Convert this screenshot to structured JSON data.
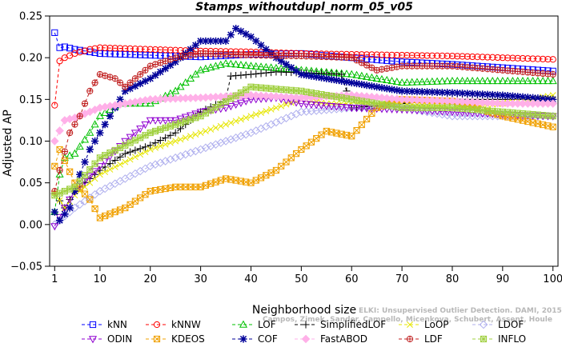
{
  "chart_data": {
    "type": "line",
    "title": "Stamps_withoutdupl_norm_05_v05",
    "xlabel": "Neighborhood size",
    "ylabel": "Adjusted AP",
    "xlim": [
      0,
      101
    ],
    "ylim": [
      -0.05,
      0.25
    ],
    "xticks": [
      1,
      10,
      20,
      30,
      40,
      50,
      60,
      70,
      80,
      90,
      100
    ],
    "yticks": [
      -0.05,
      0.0,
      0.05,
      0.1,
      0.15,
      0.2,
      0.25
    ],
    "ytick_labels": [
      "−0.05",
      "0.00",
      "0.05",
      "0.10",
      "0.15",
      "0.20",
      "0.25"
    ],
    "grid": false,
    "legend_position": "bottom",
    "watermark": [
      "ELKI: Unsupervised Outlier Detection. DAMI, 2015.",
      "Campos, Zimek, Sander, Campello, Micenkova, Schubert, Assent, Houle"
    ],
    "series": [
      {
        "name": "kNN",
        "color": "#0000ff",
        "marker": "square",
        "points": [
          [
            1,
            0.23
          ],
          [
            2,
            0.212
          ],
          [
            3,
            0.213
          ],
          [
            5,
            0.21
          ],
          [
            10,
            0.205
          ],
          [
            20,
            0.203
          ],
          [
            30,
            0.201
          ],
          [
            40,
            0.204
          ],
          [
            50,
            0.205
          ],
          [
            60,
            0.2
          ],
          [
            70,
            0.195
          ],
          [
            80,
            0.192
          ],
          [
            90,
            0.188
          ],
          [
            100,
            0.184
          ]
        ]
      },
      {
        "name": "kNNW",
        "color": "#ff0000",
        "marker": "circle",
        "points": [
          [
            1,
            0.143
          ],
          [
            2,
            0.196
          ],
          [
            3,
            0.2
          ],
          [
            5,
            0.205
          ],
          [
            8,
            0.21
          ],
          [
            10,
            0.212
          ],
          [
            20,
            0.21
          ],
          [
            30,
            0.208
          ],
          [
            40,
            0.207
          ],
          [
            50,
            0.205
          ],
          [
            60,
            0.204
          ],
          [
            70,
            0.203
          ],
          [
            80,
            0.202
          ],
          [
            90,
            0.2
          ],
          [
            100,
            0.198
          ]
        ]
      },
      {
        "name": "LOF",
        "color": "#00c000",
        "marker": "triangle-up",
        "points": [
          [
            1,
            0.015
          ],
          [
            2,
            0.06
          ],
          [
            3,
            0.08
          ],
          [
            5,
            0.085
          ],
          [
            8,
            0.11
          ],
          [
            10,
            0.13
          ],
          [
            14,
            0.145
          ],
          [
            20,
            0.145
          ],
          [
            25,
            0.16
          ],
          [
            30,
            0.185
          ],
          [
            35,
            0.193
          ],
          [
            40,
            0.19
          ],
          [
            50,
            0.185
          ],
          [
            60,
            0.18
          ],
          [
            70,
            0.17
          ],
          [
            80,
            0.172
          ],
          [
            90,
            0.172
          ],
          [
            100,
            0.172
          ]
        ]
      },
      {
        "name": "SimplifiedLOF",
        "color": "#000000",
        "marker": "plus",
        "points": [
          [
            1,
            0.037
          ],
          [
            3,
            0.02
          ],
          [
            5,
            0.04
          ],
          [
            10,
            0.065
          ],
          [
            15,
            0.085
          ],
          [
            20,
            0.095
          ],
          [
            25,
            0.11
          ],
          [
            30,
            0.135
          ],
          [
            35,
            0.15
          ],
          [
            36,
            0.178
          ],
          [
            40,
            0.18
          ],
          [
            45,
            0.183
          ],
          [
            50,
            0.182
          ],
          [
            55,
            0.181
          ],
          [
            58,
            0.18
          ],
          [
            60,
            0.14
          ],
          [
            70,
            0.145
          ],
          [
            80,
            0.15
          ],
          [
            90,
            0.15
          ],
          [
            100,
            0.15
          ]
        ]
      },
      {
        "name": "LoOP",
        "color": "#e6e600",
        "marker": "x",
        "points": [
          [
            1,
            0.038
          ],
          [
            3,
            0.02
          ],
          [
            5,
            0.035
          ],
          [
            10,
            0.06
          ],
          [
            20,
            0.09
          ],
          [
            30,
            0.11
          ],
          [
            40,
            0.13
          ],
          [
            50,
            0.15
          ],
          [
            55,
            0.145
          ],
          [
            60,
            0.145
          ],
          [
            70,
            0.145
          ],
          [
            80,
            0.14
          ],
          [
            90,
            0.145
          ],
          [
            100,
            0.155
          ]
        ]
      },
      {
        "name": "LDOF",
        "color": "#b0b0ee",
        "marker": "diamond",
        "points": [
          [
            1,
            0.0
          ],
          [
            3,
            0.01
          ],
          [
            5,
            0.02
          ],
          [
            10,
            0.04
          ],
          [
            15,
            0.055
          ],
          [
            20,
            0.07
          ],
          [
            25,
            0.08
          ],
          [
            30,
            0.09
          ],
          [
            40,
            0.11
          ],
          [
            50,
            0.135
          ],
          [
            60,
            0.14
          ],
          [
            70,
            0.14
          ],
          [
            80,
            0.13
          ],
          [
            90,
            0.13
          ],
          [
            100,
            0.13
          ]
        ]
      },
      {
        "name": "ODIN",
        "color": "#9000d0",
        "marker": "triangle-down",
        "points": [
          [
            1,
            -0.002
          ],
          [
            3,
            0.02
          ],
          [
            5,
            0.04
          ],
          [
            10,
            0.07
          ],
          [
            15,
            0.1
          ],
          [
            20,
            0.125
          ],
          [
            25,
            0.125
          ],
          [
            30,
            0.135
          ],
          [
            35,
            0.14
          ],
          [
            40,
            0.15
          ],
          [
            45,
            0.152
          ],
          [
            50,
            0.145
          ],
          [
            60,
            0.14
          ],
          [
            70,
            0.138
          ],
          [
            80,
            0.135
          ],
          [
            90,
            0.132
          ],
          [
            100,
            0.13
          ]
        ]
      },
      {
        "name": "KDEOS",
        "color": "#f0a000",
        "marker": "square-x",
        "points": [
          [
            1,
            0.07
          ],
          [
            2,
            0.09
          ],
          [
            5,
            0.05
          ],
          [
            8,
            0.03
          ],
          [
            10,
            0.008
          ],
          [
            15,
            0.02
          ],
          [
            20,
            0.04
          ],
          [
            25,
            0.045
          ],
          [
            30,
            0.045
          ],
          [
            35,
            0.055
          ],
          [
            40,
            0.05
          ],
          [
            45,
            0.065
          ],
          [
            50,
            0.09
          ],
          [
            55,
            0.112
          ],
          [
            60,
            0.106
          ],
          [
            65,
            0.14
          ],
          [
            70,
            0.15
          ],
          [
            80,
            0.148
          ],
          [
            90,
            0.13
          ],
          [
            100,
            0.117
          ]
        ]
      },
      {
        "name": "COF",
        "color": "#000099",
        "marker": "star",
        "points": [
          [
            1,
            0.015
          ],
          [
            2,
            0.005
          ],
          [
            4,
            0.02
          ],
          [
            6,
            0.06
          ],
          [
            8,
            0.09
          ],
          [
            10,
            0.11
          ],
          [
            15,
            0.16
          ],
          [
            20,
            0.175
          ],
          [
            25,
            0.195
          ],
          [
            30,
            0.22
          ],
          [
            35,
            0.22
          ],
          [
            37,
            0.235
          ],
          [
            40,
            0.225
          ],
          [
            45,
            0.2
          ],
          [
            50,
            0.18
          ],
          [
            60,
            0.17
          ],
          [
            70,
            0.16
          ],
          [
            80,
            0.158
          ],
          [
            90,
            0.155
          ],
          [
            100,
            0.15
          ]
        ]
      },
      {
        "name": "FastABOD",
        "color": "#ffb0e8",
        "marker": "diamond-filled",
        "points": [
          [
            1,
            0.1
          ],
          [
            3,
            0.125
          ],
          [
            5,
            0.128
          ],
          [
            10,
            0.14
          ],
          [
            15,
            0.145
          ],
          [
            20,
            0.15
          ],
          [
            30,
            0.152
          ],
          [
            40,
            0.155
          ],
          [
            50,
            0.152
          ],
          [
            60,
            0.155
          ],
          [
            70,
            0.15
          ],
          [
            80,
            0.148
          ],
          [
            90,
            0.145
          ],
          [
            100,
            0.145
          ]
        ]
      },
      {
        "name": "LDF",
        "color": "#c02020",
        "marker": "circle-plus",
        "points": [
          [
            1,
            0.04
          ],
          [
            2,
            0.065
          ],
          [
            4,
            0.11
          ],
          [
            6,
            0.13
          ],
          [
            8,
            0.16
          ],
          [
            10,
            0.18
          ],
          [
            13,
            0.175
          ],
          [
            15,
            0.165
          ],
          [
            20,
            0.19
          ],
          [
            25,
            0.2
          ],
          [
            30,
            0.205
          ],
          [
            40,
            0.203
          ],
          [
            50,
            0.202
          ],
          [
            60,
            0.2
          ],
          [
            65,
            0.185
          ],
          [
            70,
            0.19
          ],
          [
            80,
            0.19
          ],
          [
            90,
            0.185
          ],
          [
            100,
            0.18
          ]
        ]
      },
      {
        "name": "INFLO",
        "color": "#a0d040",
        "marker": "square-star",
        "points": [
          [
            1,
            0.035
          ],
          [
            3,
            0.04
          ],
          [
            5,
            0.045
          ],
          [
            10,
            0.08
          ],
          [
            15,
            0.095
          ],
          [
            20,
            0.11
          ],
          [
            25,
            0.12
          ],
          [
            30,
            0.13
          ],
          [
            40,
            0.165
          ],
          [
            50,
            0.16
          ],
          [
            60,
            0.15
          ],
          [
            70,
            0.14
          ],
          [
            80,
            0.14
          ],
          [
            90,
            0.135
          ],
          [
            100,
            0.13
          ]
        ]
      }
    ]
  }
}
